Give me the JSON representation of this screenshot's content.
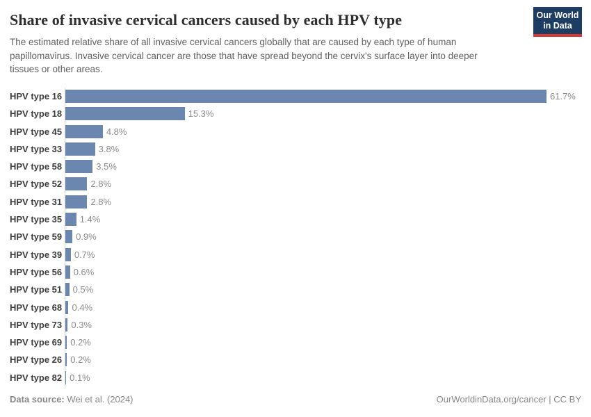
{
  "header": {
    "title": "Share of invasive cervical cancers caused by each HPV type",
    "subtitle": "The estimated relative share of all invasive cervical cancers globally that are caused by each type of human papillomavirus. Invasive cervical cancer are those that have spread beyond the cervix's surface layer into deeper tissues or other areas.",
    "logo": {
      "line1": "Our World",
      "line2": "in Data",
      "bg_color": "#1d3d63",
      "accent_color": "#d7382f"
    }
  },
  "chart_data": {
    "type": "bar",
    "orientation": "horizontal",
    "title": "Share of invasive cervical cancers caused by each HPV type",
    "unit": "%",
    "xlim": [
      0,
      61.7
    ],
    "grid": false,
    "bar_color": "#6c87af",
    "categories": [
      "HPV type 16",
      "HPV type 18",
      "HPV type 45",
      "HPV type 33",
      "HPV type 58",
      "HPV type 52",
      "HPV type 31",
      "HPV type 35",
      "HPV type 59",
      "HPV type 39",
      "HPV type 56",
      "HPV type 51",
      "HPV type 68",
      "HPV type 73",
      "HPV type 69",
      "HPV type 26",
      "HPV type 82"
    ],
    "values": [
      61.7,
      15.3,
      4.8,
      3.8,
      3.5,
      2.8,
      2.8,
      1.4,
      0.9,
      0.7,
      0.6,
      0.5,
      0.4,
      0.3,
      0.2,
      0.2,
      0.1
    ],
    "value_labels": [
      "61.7%",
      "15.3%",
      "4.8%",
      "3.8%",
      "3.5%",
      "2.8%",
      "2.8%",
      "1.4%",
      "0.9%",
      "0.7%",
      "0.6%",
      "0.5%",
      "0.4%",
      "0.3%",
      "0.2%",
      "0.2%",
      "0.1%"
    ]
  },
  "footer": {
    "source_label": "Data source:",
    "source_value": "Wei et al. (2024)",
    "credit": "OurWorldinData.org/cancer | CC BY"
  }
}
